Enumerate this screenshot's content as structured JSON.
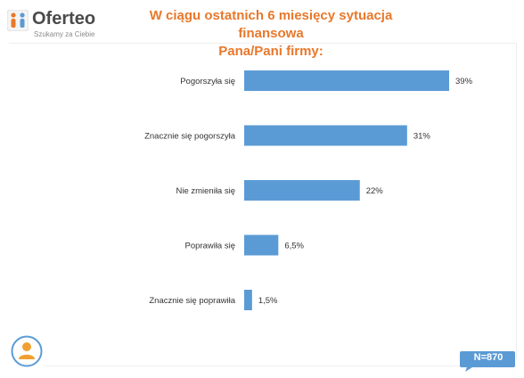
{
  "logo": {
    "name": "Oferteo",
    "tagline": "Szukamy za Ciebie"
  },
  "title_line1": "W ciągu ostatnich 6 miesięcy sytuacja finansowa",
  "title_line2": "Pana/Pani firmy:",
  "sample_size": "N=870",
  "colors": {
    "bar": "#5b9bd5",
    "title": "#e8782b",
    "badge": "#5b9bd5",
    "avatar": "#f0a030"
  },
  "chart_data": {
    "type": "bar",
    "orientation": "horizontal",
    "categories": [
      "Pogorszyła się",
      "Znacznie się pogorszyła",
      "Nie zmieniła się",
      "Poprawiła się",
      "Znacznie się poprawiła"
    ],
    "values": [
      39,
      31,
      22,
      6.5,
      1.5
    ],
    "value_labels": [
      "39%",
      "31%",
      "22%",
      "6,5%",
      "1,5%"
    ],
    "xlim": [
      0,
      45
    ],
    "grid": false,
    "legend": "none"
  }
}
